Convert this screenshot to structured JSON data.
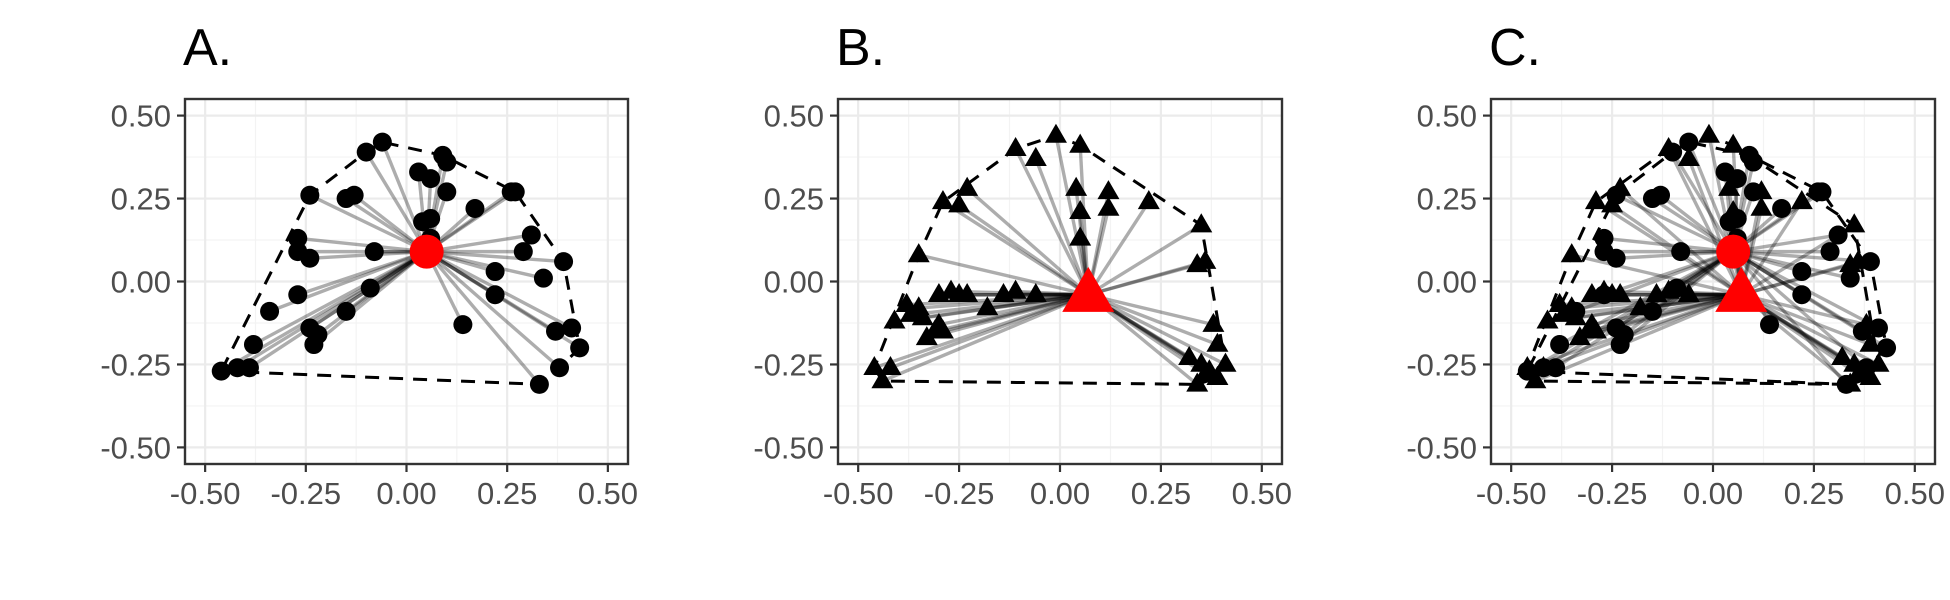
{
  "chart_data": [
    {
      "type": "scatter",
      "title": "A.",
      "xlim": [
        -0.55,
        0.55
      ],
      "ylim": [
        -0.55,
        0.55
      ],
      "x_ticks": [
        "-0.50",
        "-0.25",
        "0.00",
        "0.25",
        "0.50"
      ],
      "y_ticks": [
        "-0.50",
        "-0.25",
        "0.00",
        "0.25",
        "0.50"
      ],
      "grid": true,
      "series": [
        {
          "marker": "circle",
          "color": "#000000",
          "centroid": {
            "x": 0.05,
            "y": 0.09,
            "marker": "circle",
            "color": "#ff0000"
          },
          "hull_dashed": true,
          "points": [
            [
              -0.46,
              -0.27
            ],
            [
              -0.42,
              -0.26
            ],
            [
              -0.39,
              -0.26
            ],
            [
              -0.38,
              -0.19
            ],
            [
              -0.34,
              -0.09
            ],
            [
              -0.27,
              -0.04
            ],
            [
              -0.27,
              0.09
            ],
            [
              -0.27,
              0.13
            ],
            [
              -0.24,
              0.07
            ],
            [
              -0.24,
              -0.14
            ],
            [
              -0.23,
              -0.19
            ],
            [
              -0.22,
              -0.16
            ],
            [
              -0.15,
              -0.09
            ],
            [
              -0.09,
              -0.02
            ],
            [
              -0.08,
              0.09
            ],
            [
              -0.24,
              0.26
            ],
            [
              -0.15,
              0.25
            ],
            [
              -0.13,
              0.26
            ],
            [
              -0.1,
              0.39
            ],
            [
              -0.06,
              0.42
            ],
            [
              0.03,
              0.33
            ],
            [
              0.09,
              0.38
            ],
            [
              0.1,
              0.36
            ],
            [
              0.1,
              0.27
            ],
            [
              0.06,
              0.31
            ],
            [
              0.04,
              0.18
            ],
            [
              0.06,
              0.19
            ],
            [
              0.06,
              0.13
            ],
            [
              0.17,
              0.22
            ],
            [
              0.26,
              0.27
            ],
            [
              0.27,
              0.27
            ],
            [
              0.31,
              0.14
            ],
            [
              0.29,
              0.09
            ],
            [
              0.22,
              0.03
            ],
            [
              0.22,
              -0.04
            ],
            [
              0.14,
              -0.13
            ],
            [
              0.34,
              0.01
            ],
            [
              0.39,
              0.06
            ],
            [
              0.37,
              -0.15
            ],
            [
              0.41,
              -0.14
            ],
            [
              0.43,
              -0.2
            ],
            [
              0.38,
              -0.26
            ],
            [
              0.33,
              -0.31
            ]
          ]
        }
      ]
    },
    {
      "type": "scatter",
      "title": "B.",
      "xlim": [
        -0.55,
        0.55
      ],
      "ylim": [
        -0.55,
        0.55
      ],
      "x_ticks": [
        "-0.50",
        "-0.25",
        "0.00",
        "0.25",
        "0.50"
      ],
      "y_ticks": [
        "-0.50",
        "-0.25",
        "0.00",
        "0.25",
        "0.50"
      ],
      "grid": true,
      "series": [
        {
          "marker": "triangle",
          "color": "#000000",
          "centroid": {
            "x": 0.07,
            "y": -0.04,
            "marker": "triangle",
            "color": "#ff0000"
          },
          "hull_dashed": true,
          "points": [
            [
              -0.46,
              -0.26
            ],
            [
              -0.44,
              -0.3
            ],
            [
              -0.42,
              -0.26
            ],
            [
              -0.41,
              -0.12
            ],
            [
              -0.38,
              -0.07
            ],
            [
              -0.37,
              -0.1
            ],
            [
              -0.35,
              -0.08
            ],
            [
              -0.34,
              -0.11
            ],
            [
              -0.33,
              -0.17
            ],
            [
              -0.31,
              -0.15
            ],
            [
              -0.3,
              -0.13
            ],
            [
              -0.29,
              -0.15
            ],
            [
              -0.3,
              -0.04
            ],
            [
              -0.27,
              -0.03
            ],
            [
              -0.25,
              -0.04
            ],
            [
              -0.23,
              -0.04
            ],
            [
              -0.18,
              -0.08
            ],
            [
              -0.14,
              -0.04
            ],
            [
              -0.11,
              -0.03
            ],
            [
              -0.06,
              -0.04
            ],
            [
              -0.35,
              0.08
            ],
            [
              -0.29,
              0.24
            ],
            [
              -0.25,
              0.23
            ],
            [
              -0.23,
              0.28
            ],
            [
              -0.11,
              0.4
            ],
            [
              -0.06,
              0.37
            ],
            [
              -0.01,
              0.44
            ],
            [
              0.05,
              0.41
            ],
            [
              0.04,
              0.28
            ],
            [
              0.05,
              0.13
            ],
            [
              0.05,
              0.21
            ],
            [
              0.12,
              0.27
            ],
            [
              0.12,
              0.22
            ],
            [
              0.22,
              0.24
            ],
            [
              0.35,
              0.17
            ],
            [
              0.34,
              0.05
            ],
            [
              0.36,
              0.06
            ],
            [
              0.38,
              -0.13
            ],
            [
              0.39,
              -0.19
            ],
            [
              0.32,
              -0.23
            ],
            [
              0.35,
              -0.25
            ],
            [
              0.37,
              -0.27
            ],
            [
              0.41,
              -0.25
            ],
            [
              0.39,
              -0.29
            ],
            [
              0.36,
              -0.28
            ],
            [
              0.34,
              -0.31
            ]
          ]
        }
      ]
    },
    {
      "type": "scatter",
      "title": "C.",
      "xlim": [
        -0.55,
        0.55
      ],
      "ylim": [
        -0.55,
        0.55
      ],
      "x_ticks": [
        "-0.50",
        "-0.25",
        "0.00",
        "0.25",
        "0.50"
      ],
      "y_ticks": [
        "-0.50",
        "-0.25",
        "0.00",
        "0.25",
        "0.50"
      ],
      "grid": true,
      "series": [
        {
          "marker": "circle",
          "color": "#000000",
          "centroid": {
            "x": 0.05,
            "y": 0.09,
            "marker": "circle",
            "color": "#ff0000"
          },
          "hull_dashed": true,
          "points": [
            [
              -0.46,
              -0.27
            ],
            [
              -0.42,
              -0.26
            ],
            [
              -0.39,
              -0.26
            ],
            [
              -0.38,
              -0.19
            ],
            [
              -0.34,
              -0.09
            ],
            [
              -0.27,
              -0.04
            ],
            [
              -0.27,
              0.09
            ],
            [
              -0.27,
              0.13
            ],
            [
              -0.24,
              0.07
            ],
            [
              -0.24,
              -0.14
            ],
            [
              -0.23,
              -0.19
            ],
            [
              -0.22,
              -0.16
            ],
            [
              -0.15,
              -0.09
            ],
            [
              -0.09,
              -0.02
            ],
            [
              -0.08,
              0.09
            ],
            [
              -0.24,
              0.26
            ],
            [
              -0.15,
              0.25
            ],
            [
              -0.13,
              0.26
            ],
            [
              -0.1,
              0.39
            ],
            [
              -0.06,
              0.42
            ],
            [
              0.03,
              0.33
            ],
            [
              0.09,
              0.38
            ],
            [
              0.1,
              0.36
            ],
            [
              0.1,
              0.27
            ],
            [
              0.06,
              0.31
            ],
            [
              0.04,
              0.18
            ],
            [
              0.06,
              0.19
            ],
            [
              0.06,
              0.13
            ],
            [
              0.17,
              0.22
            ],
            [
              0.26,
              0.27
            ],
            [
              0.27,
              0.27
            ],
            [
              0.31,
              0.14
            ],
            [
              0.29,
              0.09
            ],
            [
              0.22,
              0.03
            ],
            [
              0.22,
              -0.04
            ],
            [
              0.14,
              -0.13
            ],
            [
              0.34,
              0.01
            ],
            [
              0.39,
              0.06
            ],
            [
              0.37,
              -0.15
            ],
            [
              0.41,
              -0.14
            ],
            [
              0.43,
              -0.2
            ],
            [
              0.38,
              -0.26
            ],
            [
              0.33,
              -0.31
            ]
          ]
        },
        {
          "marker": "triangle",
          "color": "#000000",
          "centroid": {
            "x": 0.07,
            "y": -0.04,
            "marker": "triangle",
            "color": "#ff0000"
          },
          "hull_dashed": true,
          "points": [
            [
              -0.46,
              -0.26
            ],
            [
              -0.44,
              -0.3
            ],
            [
              -0.42,
              -0.26
            ],
            [
              -0.41,
              -0.12
            ],
            [
              -0.38,
              -0.07
            ],
            [
              -0.37,
              -0.1
            ],
            [
              -0.35,
              -0.08
            ],
            [
              -0.34,
              -0.11
            ],
            [
              -0.33,
              -0.17
            ],
            [
              -0.31,
              -0.15
            ],
            [
              -0.3,
              -0.13
            ],
            [
              -0.29,
              -0.15
            ],
            [
              -0.3,
              -0.04
            ],
            [
              -0.27,
              -0.03
            ],
            [
              -0.25,
              -0.04
            ],
            [
              -0.23,
              -0.04
            ],
            [
              -0.18,
              -0.08
            ],
            [
              -0.14,
              -0.04
            ],
            [
              -0.11,
              -0.03
            ],
            [
              -0.06,
              -0.04
            ],
            [
              -0.35,
              0.08
            ],
            [
              -0.29,
              0.24
            ],
            [
              -0.25,
              0.23
            ],
            [
              -0.23,
              0.28
            ],
            [
              -0.11,
              0.4
            ],
            [
              -0.06,
              0.37
            ],
            [
              -0.01,
              0.44
            ],
            [
              0.05,
              0.41
            ],
            [
              0.04,
              0.28
            ],
            [
              0.05,
              0.13
            ],
            [
              0.05,
              0.21
            ],
            [
              0.12,
              0.27
            ],
            [
              0.12,
              0.22
            ],
            [
              0.22,
              0.24
            ],
            [
              0.35,
              0.17
            ],
            [
              0.34,
              0.05
            ],
            [
              0.36,
              0.06
            ],
            [
              0.38,
              -0.13
            ],
            [
              0.39,
              -0.19
            ],
            [
              0.32,
              -0.23
            ],
            [
              0.35,
              -0.25
            ],
            [
              0.37,
              -0.27
            ],
            [
              0.41,
              -0.25
            ],
            [
              0.39,
              -0.29
            ],
            [
              0.36,
              -0.28
            ],
            [
              0.34,
              -0.31
            ]
          ]
        }
      ]
    }
  ]
}
